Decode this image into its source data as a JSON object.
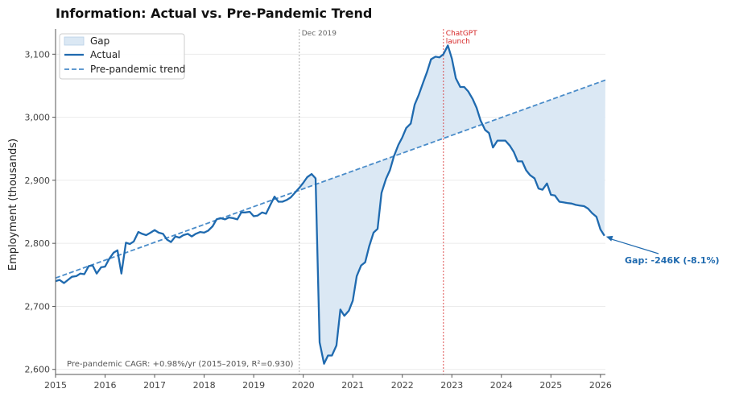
{
  "chart_data": {
    "type": "line",
    "title": "Information: Actual vs. Pre-Pandemic Trend",
    "ylabel": "Employment (thousands)",
    "xlabel": "",
    "xlim": [
      2015.0,
      2026.1
    ],
    "ylim": [
      2592,
      3140
    ],
    "x_ticks": [
      "2015",
      "2016",
      "2017",
      "2018",
      "2019",
      "2020",
      "2021",
      "2022",
      "2023",
      "2024",
      "2025",
      "2026"
    ],
    "y_ticks": [
      "2,600",
      "2,700",
      "2,800",
      "2,900",
      "3,000",
      "3,100"
    ],
    "y_tick_values": [
      2600,
      2700,
      2800,
      2900,
      3000,
      3100
    ],
    "grid": "horizontal",
    "legend": {
      "position": "top-left",
      "entries": [
        "Gap",
        "Actual",
        "Pre-pandemic trend"
      ]
    },
    "colors": {
      "actual": "#1f6aaf",
      "trend": "#4a8cc9",
      "gap_fill": "#dbe8f4",
      "chatgpt": "#d62728",
      "dec_line": "#aaaaaa"
    },
    "series": [
      {
        "name": "Actual",
        "x": [
          2015.0,
          2015.08,
          2015.17,
          2015.25,
          2015.33,
          2015.42,
          2015.5,
          2015.58,
          2015.67,
          2015.75,
          2015.83,
          2015.92,
          2016.0,
          2016.08,
          2016.17,
          2016.25,
          2016.33,
          2016.42,
          2016.5,
          2016.58,
          2016.67,
          2016.75,
          2016.83,
          2016.92,
          2017.0,
          2017.08,
          2017.17,
          2017.25,
          2017.33,
          2017.42,
          2017.5,
          2017.58,
          2017.67,
          2017.75,
          2017.83,
          2017.92,
          2018.0,
          2018.08,
          2018.17,
          2018.25,
          2018.33,
          2018.42,
          2018.5,
          2018.58,
          2018.67,
          2018.75,
          2018.83,
          2018.92,
          2019.0,
          2019.08,
          2019.17,
          2019.25,
          2019.33,
          2019.42,
          2019.5,
          2019.58,
          2019.67,
          2019.75,
          2019.83,
          2019.92,
          2020.0,
          2020.08,
          2020.17,
          2020.25,
          2020.33,
          2020.42,
          2020.5,
          2020.58,
          2020.67,
          2020.75,
          2020.83,
          2020.92,
          2021.0,
          2021.08,
          2021.17,
          2021.25,
          2021.33,
          2021.42,
          2021.5,
          2021.58,
          2021.67,
          2021.75,
          2021.83,
          2021.92,
          2022.0,
          2022.08,
          2022.17,
          2022.25,
          2022.33,
          2022.42,
          2022.5,
          2022.58,
          2022.67,
          2022.75,
          2022.83,
          2022.92,
          2023.0,
          2023.08,
          2023.17,
          2023.25,
          2023.33,
          2023.42,
          2023.5,
          2023.58,
          2023.67,
          2023.75,
          2023.83,
          2023.92,
          2024.0,
          2024.08,
          2024.17,
          2024.25,
          2024.33,
          2024.42,
          2024.5,
          2024.58,
          2024.67,
          2024.75,
          2024.83,
          2024.92,
          2025.0,
          2025.08,
          2025.17,
          2025.25,
          2025.33,
          2025.42,
          2025.5,
          2025.58,
          2025.67,
          2025.75,
          2025.83,
          2025.92,
          2026.0,
          2026.08
        ],
        "y": [
          2740,
          2742,
          2737,
          2742,
          2747,
          2748,
          2752,
          2751,
          2764,
          2765,
          2752,
          2762,
          2763,
          2775,
          2785,
          2789,
          2752,
          2801,
          2799,
          2803,
          2818,
          2815,
          2813,
          2817,
          2821,
          2817,
          2815,
          2806,
          2802,
          2811,
          2809,
          2813,
          2815,
          2811,
          2815,
          2818,
          2817,
          2820,
          2827,
          2838,
          2840,
          2838,
          2841,
          2840,
          2838,
          2849,
          2849,
          2850,
          2843,
          2844,
          2849,
          2847,
          2860,
          2874,
          2866,
          2866,
          2869,
          2873,
          2880,
          2888,
          2896,
          2905,
          2910,
          2903,
          2643,
          2609,
          2622,
          2622,
          2638,
          2695,
          2685,
          2693,
          2709,
          2748,
          2765,
          2770,
          2795,
          2817,
          2823,
          2880,
          2902,
          2916,
          2938,
          2956,
          2968,
          2983,
          2990,
          3020,
          3035,
          3055,
          3072,
          3092,
          3096,
          3095,
          3100,
          3114,
          3093,
          3062,
          3048,
          3048,
          3041,
          3029,
          3015,
          2995,
          2980,
          2975,
          2952,
          2963,
          2963,
          2963,
          2955,
          2945,
          2930,
          2930,
          2916,
          2908,
          2903,
          2887,
          2885,
          2895,
          2877,
          2876,
          2866,
          2865,
          2864,
          2863,
          2861,
          2860,
          2859,
          2855,
          2848,
          2842,
          2822,
          2812
        ]
      },
      {
        "name": "Pre-pandemic trend",
        "x": [
          2015.0,
          2026.1
        ],
        "y": [
          2745,
          3059
        ]
      }
    ],
    "annotations": {
      "dec_label": "Dec 2019",
      "dec_x": 2019.92,
      "chatgpt_label_1": "ChatGPT",
      "chatgpt_label_2": "launch",
      "chatgpt_x": 2022.83,
      "gap_label": "Gap: -246K (-8.1%)",
      "gap_point": [
        2026.08,
        2812
      ],
      "cagr_note": "Pre-pandemic CAGR: +0.98%/yr (2015–2019, R²=0.930)"
    }
  }
}
